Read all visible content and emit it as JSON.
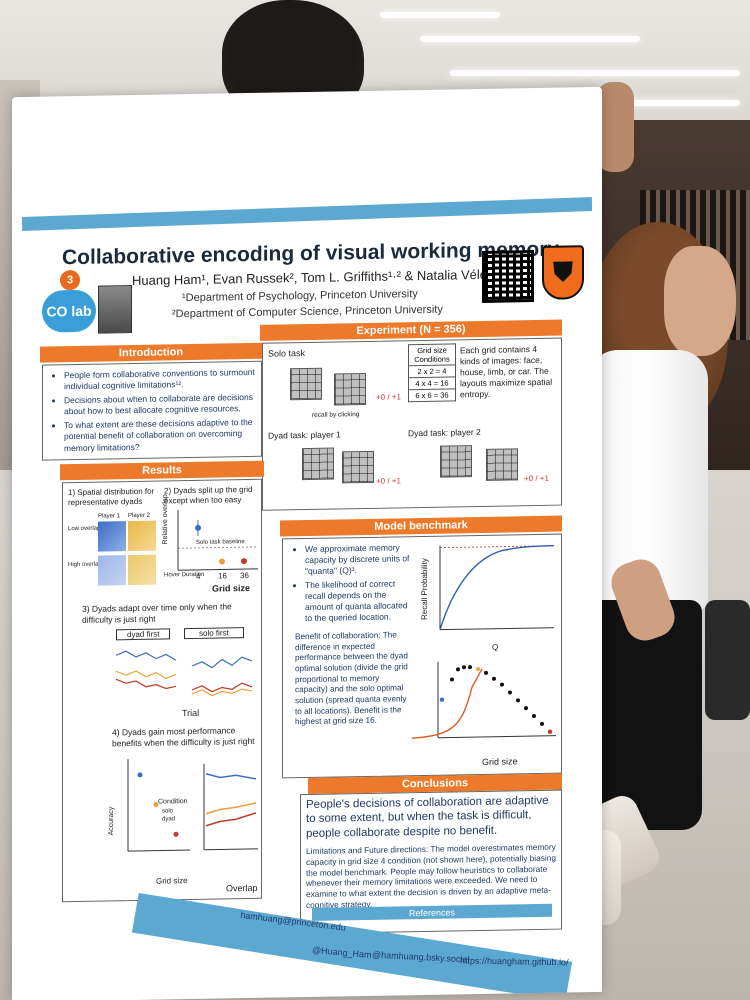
{
  "poster": {
    "title": "Collaborative encoding of visual working memory",
    "authors": "Huang Ham¹, Evan Russek², Tom L. Griffiths¹·² & Natalia Vélez¹",
    "affiliation_1": "¹Department of Psychology, Princeton University",
    "affiliation_2": "²Department of Computer Science, Princeton University",
    "logo_text": "CO lab",
    "logo_superscript": "3"
  },
  "introduction": {
    "heading": "Introduction",
    "bullets": [
      "People form collaborative conventions to surmount individual cognitive limitations¹².",
      "Decisions about when to collaborate are decisions about how to best allocate cognitive resources.",
      "To what extent are these decisions adaptive to the potential benefit of collaboration on overcoming memory limitations?"
    ]
  },
  "experiment": {
    "heading": "Experiment (N = 356)",
    "solo_task": "Solo task",
    "dyad_1": "Dyad task: player 1",
    "dyad_2": "Dyad task: player 2",
    "recall": "recall by clicking",
    "score": "+0 / +1",
    "table_header": "Grid size Conditions",
    "conditions": [
      "2 x 2 = 4",
      "4 x 4 = 16",
      "6 x 6 = 36"
    ],
    "description": "Each grid contains 4 kinds of images: face, house, limb, or car. The layouts maximize spatial entropy."
  },
  "results": {
    "heading": "Results",
    "r1": "1) Spatial distribution for representative dyads",
    "r2": "2) Dyads split up the grid except when too easy",
    "r3": "3) Dyads adapt over time only when the difficulty is just right",
    "r4": "4) Dyads gain most performance benefits when the difficulty is just right",
    "player1": "Player 1",
    "player2": "Player 2",
    "low_overlap": "Low overlap",
    "high_overlap": "High overlap",
    "ylabel_overlap": "Relative overlap",
    "baseline": "Solo task baseline",
    "xlabel_grid": "Grid size",
    "grid_ticks": [
      "4",
      "16",
      "36"
    ],
    "dyad_first": "dyad first",
    "solo_first": "solo first",
    "xlabel_trial": "Trial",
    "hover": "Hover Duration",
    "condition": "Condition",
    "accuracy": "Accuracy",
    "overlap": "Overlap",
    "solo": "solo",
    "dyad": "dyad"
  },
  "model": {
    "heading": "Model benchmark",
    "bullets": [
      "We approximate memory capacity by discrete units of \"quanta\" (Q)³.",
      "The likelihood of correct recall depends on the amount of quanta allocated to the queried location."
    ],
    "benefit": "Benefit of collaboration: The difference in expected performance between the dyad optimal solution (divide the grid proportional to memory capacity) and the solo optimal solution (spread quanta evenly to all locations). Benefit is the highest at grid size 16.",
    "ylabel_recall": "Recall Probability",
    "xlabel_q": "Q",
    "xlabel_grid": "Grid size"
  },
  "conclusions": {
    "heading": "Conclusions",
    "main": "People's decisions of collaboration are adaptive to some extent, but when the task is difficult, people collaborate despite no benefit.",
    "limits": "Limitations and Future directions: The model overestimates memory capacity in grid size 4 condition (not shown here), potentially biasing the model benchmark. People may follow heuristics to collaborate whenever their memory limitations were exceeded. We need to examine to what extent the decision is driven by an adaptive meta-cognitive strategy."
  },
  "references": {
    "heading": "References"
  },
  "footer": {
    "email": "hamhuang@princeton.edu",
    "twitter": "@Huang_Ham",
    "bluesky": "@hamhuang.bsky.social",
    "site": "https://huangham.github.io/"
  },
  "colors": {
    "orange": "#ec7a2a",
    "blue": "#5da8d0",
    "navy": "#1f3a68"
  }
}
